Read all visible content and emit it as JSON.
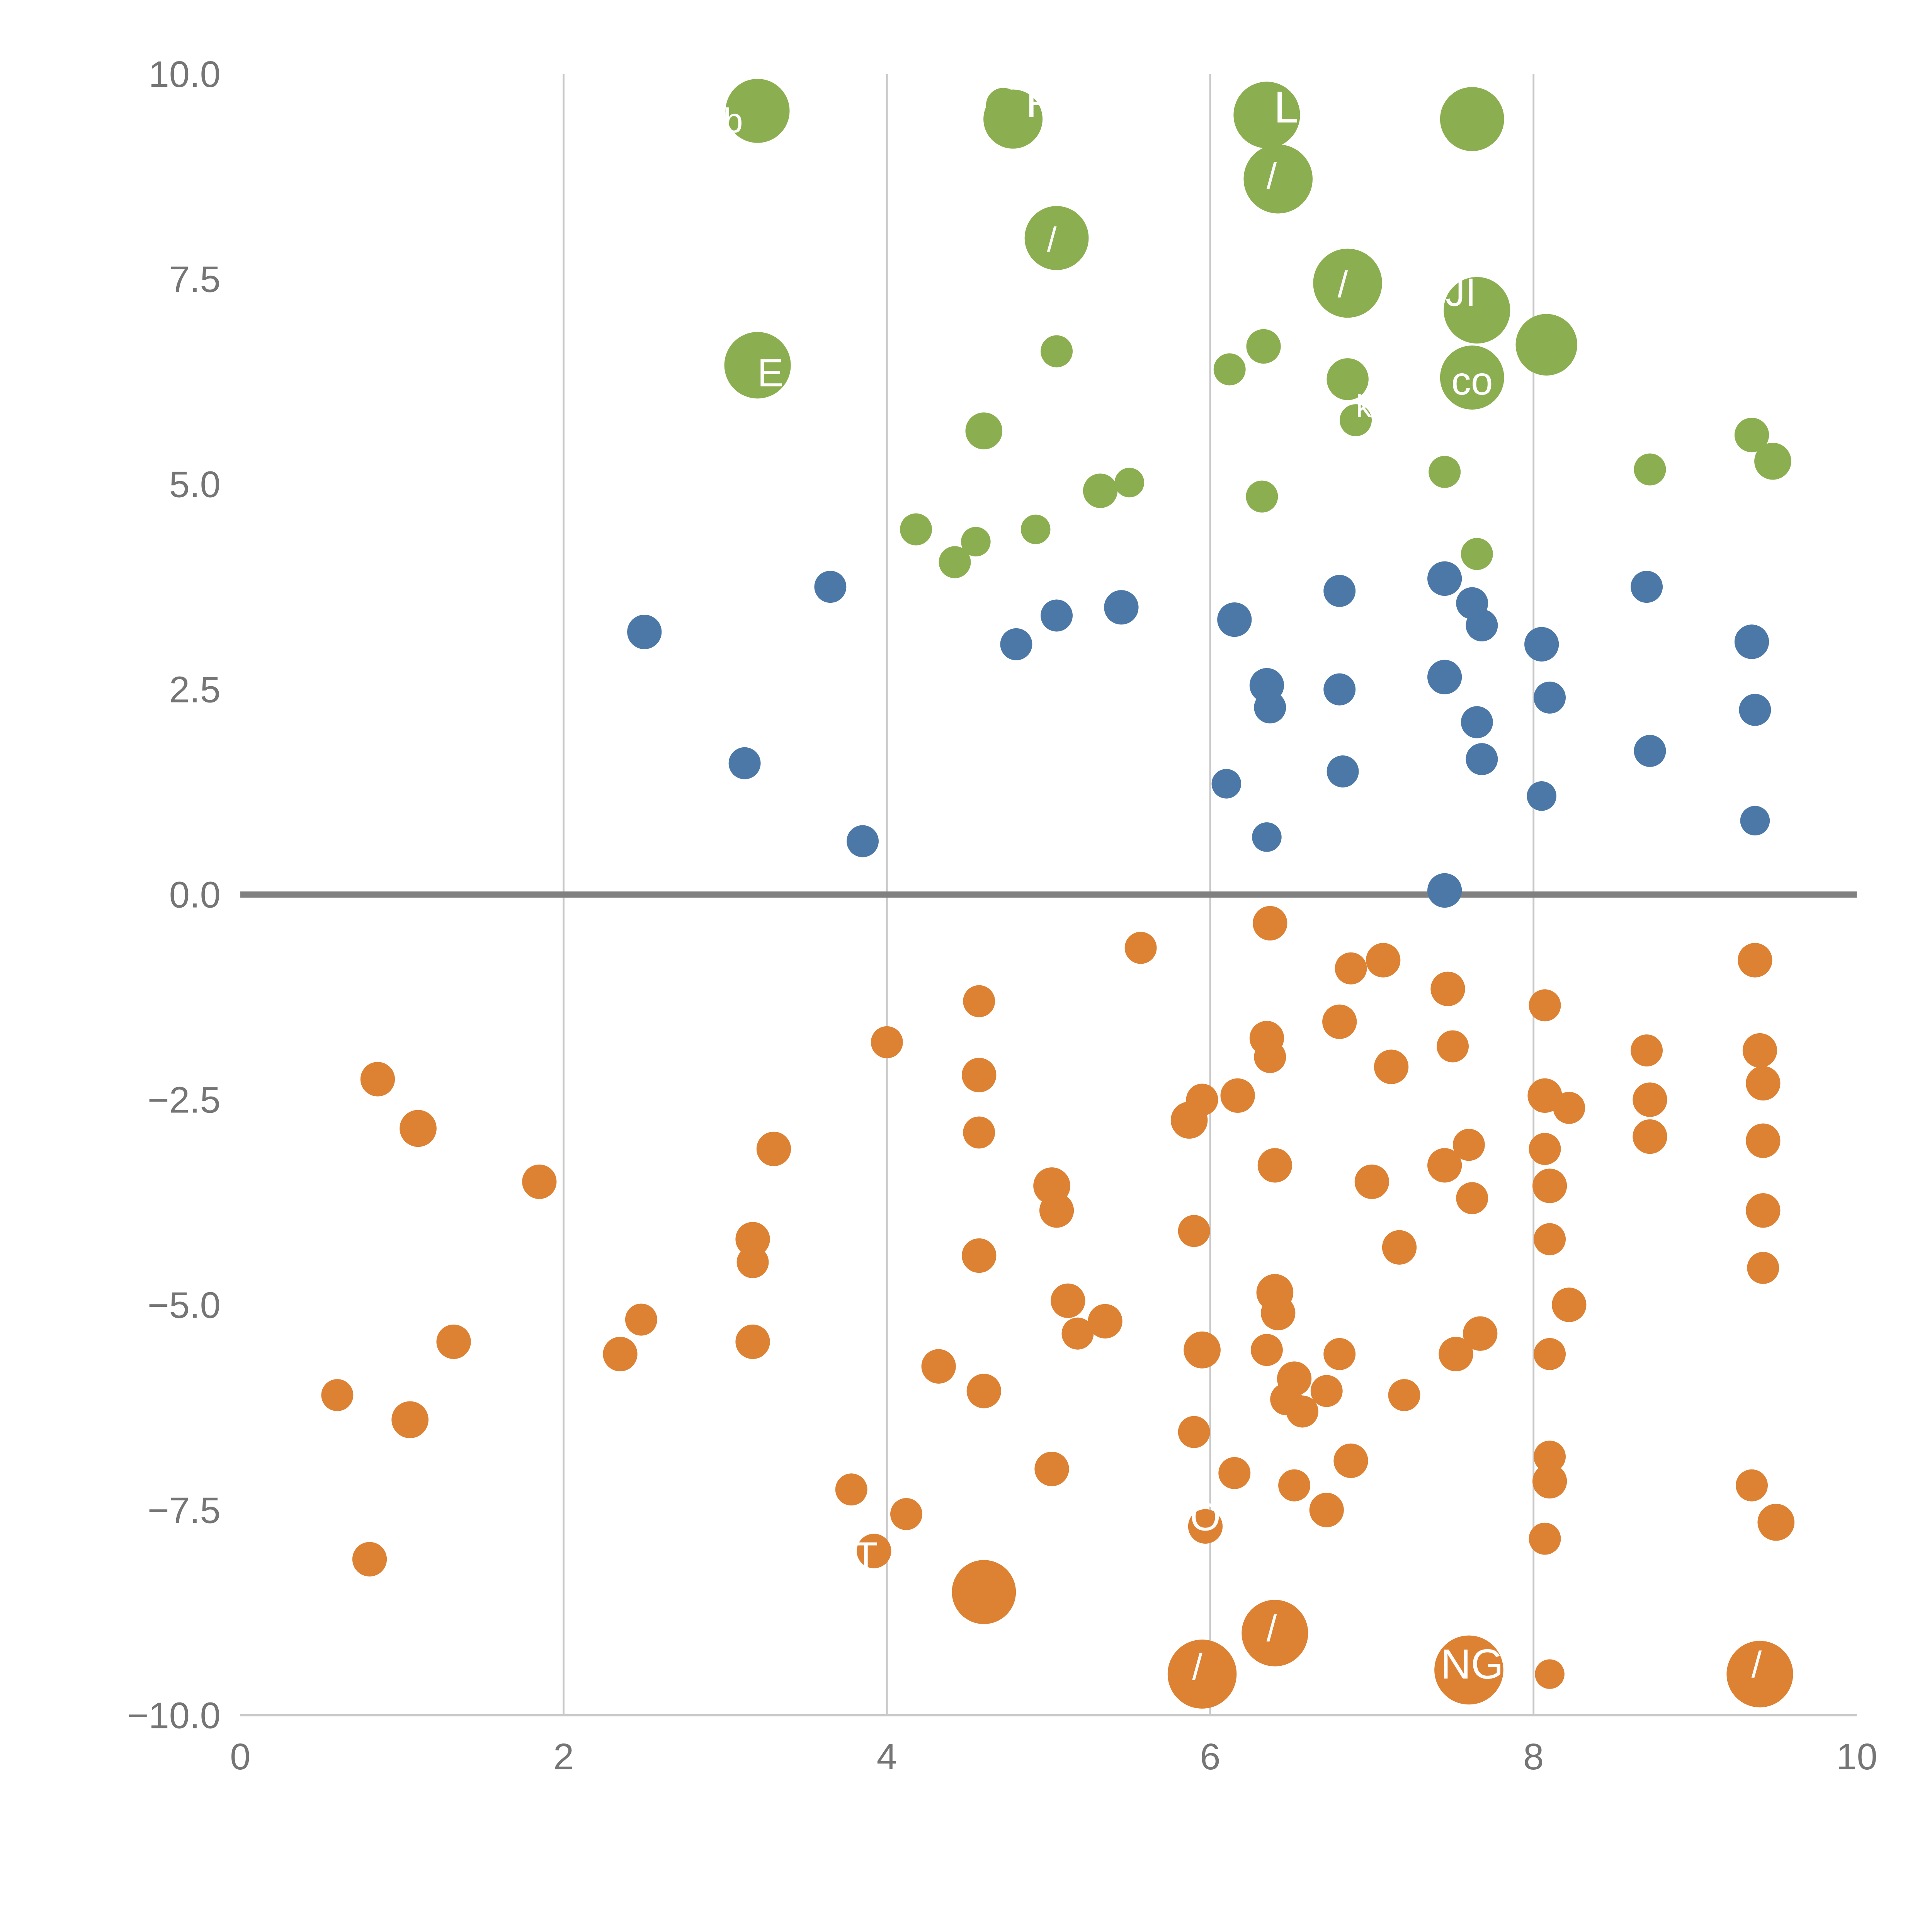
{
  "chart_data": {
    "type": "scatter",
    "title": "",
    "xlabel": "",
    "ylabel": "",
    "xlim": [
      0,
      10
    ],
    "ylim": [
      -10,
      10
    ],
    "grid": true,
    "gridlines_x": [
      2,
      4,
      6,
      8
    ],
    "zero_line_y": 0,
    "x_ticks": {
      "values": [
        0,
        2,
        4,
        6,
        8,
        10
      ],
      "labels": [
        "0",
        "2",
        "4",
        "6",
        "8",
        "10"
      ]
    },
    "y_ticks": {
      "values": [
        10,
        7.5,
        5,
        2.5,
        0,
        -2.5,
        -5,
        -7.5,
        -10
      ],
      "labels": [
        "10.0",
        "7.5",
        "5.0",
        "2.5",
        "0.0",
        "−2.5",
        "−5.0",
        "−7.5",
        "−10.0"
      ]
    },
    "colors": {
      "grid": "#c9c9c9",
      "axis": "#c9c9c9",
      "zero_line": "#808080",
      "tick_text": "#757575",
      "label_text": "#ffffff"
    },
    "series": [
      {
        "name": "green",
        "color": "#8BAF50",
        "points": [
          [
            3.2,
            9.55,
            26
          ],
          [
            4.72,
            9.62,
            14
          ],
          [
            4.78,
            9.45,
            24
          ],
          [
            6.35,
            9.5,
            27
          ],
          [
            7.62,
            9.45,
            26
          ],
          [
            6.42,
            8.72,
            28
          ],
          [
            5.05,
            8.0,
            26
          ],
          [
            6.85,
            7.45,
            28
          ],
          [
            7.65,
            7.12,
            27
          ],
          [
            8.08,
            6.7,
            25
          ],
          [
            3.2,
            6.45,
            27
          ],
          [
            5.05,
            6.62,
            13
          ],
          [
            6.12,
            6.4,
            13
          ],
          [
            6.33,
            6.68,
            14
          ],
          [
            6.85,
            6.28,
            17
          ],
          [
            7.62,
            6.3,
            26
          ],
          [
            6.9,
            5.78,
            13
          ],
          [
            4.6,
            5.65,
            15
          ],
          [
            7.45,
            5.15,
            13
          ],
          [
            8.72,
            5.18,
            13
          ],
          [
            9.35,
            5.6,
            14
          ],
          [
            9.48,
            5.28,
            15
          ],
          [
            5.32,
            4.92,
            14
          ],
          [
            5.5,
            5.02,
            12
          ],
          [
            4.18,
            4.45,
            13
          ],
          [
            4.42,
            4.05,
            13
          ],
          [
            4.55,
            4.3,
            12
          ],
          [
            4.92,
            4.45,
            12
          ],
          [
            6.32,
            4.85,
            13
          ],
          [
            7.65,
            4.15,
            13
          ]
        ]
      },
      {
        "name": "blue",
        "color": "#4C78A8",
        "points": [
          [
            2.5,
            3.2,
            14
          ],
          [
            3.65,
            3.75,
            13
          ],
          [
            3.12,
            1.6,
            13
          ],
          [
            3.85,
            0.65,
            13
          ],
          [
            4.8,
            3.05,
            13
          ],
          [
            5.05,
            3.4,
            13
          ],
          [
            5.45,
            3.5,
            14
          ],
          [
            6.15,
            3.35,
            14
          ],
          [
            6.35,
            2.55,
            14
          ],
          [
            6.37,
            2.28,
            13
          ],
          [
            6.8,
            3.7,
            13
          ],
          [
            6.8,
            2.5,
            13
          ],
          [
            6.1,
            1.35,
            12
          ],
          [
            6.35,
            0.7,
            12
          ],
          [
            6.82,
            1.5,
            13
          ],
          [
            7.45,
            3.85,
            14
          ],
          [
            7.62,
            3.55,
            13
          ],
          [
            7.68,
            3.28,
            13
          ],
          [
            7.45,
            2.65,
            14
          ],
          [
            7.65,
            2.1,
            13
          ],
          [
            7.68,
            1.65,
            13
          ],
          [
            8.05,
            3.05,
            14
          ],
          [
            8.1,
            2.4,
            13
          ],
          [
            8.05,
            1.2,
            12
          ],
          [
            8.7,
            3.75,
            13
          ],
          [
            8.72,
            1.75,
            13
          ],
          [
            7.45,
            0.05,
            14
          ],
          [
            9.35,
            3.08,
            14
          ],
          [
            9.37,
            2.25,
            13
          ],
          [
            9.37,
            0.9,
            12
          ]
        ]
      },
      {
        "name": "orange",
        "color": "#DD8133",
        "points": [
          [
            0.85,
            -2.25,
            14
          ],
          [
            1.1,
            -2.85,
            15
          ],
          [
            1.85,
            -3.5,
            14
          ],
          [
            1.32,
            -5.45,
            14
          ],
          [
            0.6,
            -6.1,
            13
          ],
          [
            1.05,
            -6.4,
            15
          ],
          [
            0.8,
            -8.1,
            14
          ],
          [
            2.35,
            -5.6,
            14
          ],
          [
            2.48,
            -5.18,
            13
          ],
          [
            3.3,
            -3.1,
            14
          ],
          [
            3.17,
            -4.2,
            14
          ],
          [
            3.17,
            -4.48,
            13
          ],
          [
            3.17,
            -5.45,
            14
          ],
          [
            3.78,
            -7.25,
            13
          ],
          [
            3.92,
            -8.0,
            14
          ],
          [
            4.12,
            -7.55,
            13
          ],
          [
            4.0,
            -1.8,
            13
          ],
          [
            4.57,
            -1.3,
            13
          ],
          [
            4.57,
            -2.2,
            14
          ],
          [
            4.57,
            -2.9,
            13
          ],
          [
            4.57,
            -4.4,
            14
          ],
          [
            4.32,
            -5.75,
            14
          ],
          [
            4.6,
            -6.05,
            14
          ],
          [
            5.02,
            -3.55,
            15
          ],
          [
            5.05,
            -3.85,
            14
          ],
          [
            5.12,
            -4.95,
            14
          ],
          [
            5.18,
            -5.35,
            13
          ],
          [
            5.35,
            -5.2,
            14
          ],
          [
            5.02,
            -7.0,
            14
          ],
          [
            4.6,
            -8.5,
            26
          ],
          [
            5.57,
            -0.65,
            13
          ],
          [
            5.87,
            -2.75,
            15
          ],
          [
            5.95,
            -2.5,
            13
          ],
          [
            6.17,
            -2.45,
            14
          ],
          [
            5.9,
            -4.1,
            13
          ],
          [
            5.95,
            -5.55,
            15
          ],
          [
            5.9,
            -6.55,
            13
          ],
          [
            6.15,
            -7.05,
            13
          ],
          [
            5.97,
            -7.7,
            14
          ],
          [
            5.95,
            -9.5,
            28
          ],
          [
            6.37,
            -0.35,
            14
          ],
          [
            6.35,
            -1.75,
            14
          ],
          [
            6.37,
            -1.98,
            13
          ],
          [
            6.4,
            -3.3,
            14
          ],
          [
            6.4,
            -4.85,
            15
          ],
          [
            6.42,
            -5.1,
            14
          ],
          [
            6.35,
            -5.55,
            13
          ],
          [
            6.52,
            -5.9,
            14
          ],
          [
            6.47,
            -6.15,
            13
          ],
          [
            6.57,
            -6.3,
            13
          ],
          [
            6.72,
            -6.05,
            13
          ],
          [
            6.8,
            -5.6,
            13
          ],
          [
            6.87,
            -6.9,
            14
          ],
          [
            6.52,
            -7.2,
            13
          ],
          [
            6.72,
            -7.5,
            14
          ],
          [
            6.4,
            -9.0,
            27
          ],
          [
            6.8,
            -1.55,
            14
          ],
          [
            6.87,
            -0.9,
            13
          ],
          [
            7.07,
            -0.8,
            14
          ],
          [
            7.12,
            -2.1,
            14
          ],
          [
            7.0,
            -3.5,
            14
          ],
          [
            7.17,
            -4.3,
            14
          ],
          [
            7.2,
            -6.1,
            13
          ],
          [
            7.47,
            -1.15,
            14
          ],
          [
            7.5,
            -1.85,
            13
          ],
          [
            7.45,
            -3.3,
            14
          ],
          [
            7.6,
            -3.05,
            13
          ],
          [
            7.62,
            -3.7,
            13
          ],
          [
            7.52,
            -5.6,
            14
          ],
          [
            7.67,
            -5.35,
            14
          ],
          [
            7.6,
            -9.45,
            28
          ],
          [
            8.07,
            -1.35,
            13
          ],
          [
            8.07,
            -2.45,
            14
          ],
          [
            8.22,
            -2.6,
            13
          ],
          [
            8.07,
            -3.1,
            13
          ],
          [
            8.1,
            -3.55,
            14
          ],
          [
            8.1,
            -4.2,
            13
          ],
          [
            8.22,
            -5.0,
            14
          ],
          [
            8.1,
            -5.6,
            13
          ],
          [
            8.1,
            -6.85,
            13
          ],
          [
            8.1,
            -7.15,
            14
          ],
          [
            8.07,
            -7.85,
            13
          ],
          [
            8.1,
            -9.5,
            12
          ],
          [
            8.7,
            -1.9,
            13
          ],
          [
            8.72,
            -2.5,
            14
          ],
          [
            8.72,
            -2.95,
            14
          ],
          [
            9.37,
            -0.8,
            14
          ],
          [
            9.4,
            -1.9,
            14
          ],
          [
            9.42,
            -2.3,
            14
          ],
          [
            9.42,
            -3.0,
            14
          ],
          [
            9.42,
            -3.85,
            14
          ],
          [
            9.42,
            -4.55,
            13
          ],
          [
            9.35,
            -7.2,
            13
          ],
          [
            9.5,
            -7.65,
            15
          ],
          [
            9.4,
            -9.5,
            27
          ]
        ]
      }
    ],
    "point_labels": [
      {
        "text": "P",
        "x": 4.95,
        "y": 9.62,
        "size": 36
      },
      {
        "text": "LPI",
        "x": 6.6,
        "y": 9.55,
        "size": 36
      },
      {
        "text": "b",
        "x": 3.05,
        "y": 9.4,
        "size": 28
      },
      {
        "text": "E",
        "x": 3.28,
        "y": 6.32,
        "size": 32
      },
      {
        "text": "JI",
        "x": 7.55,
        "y": 7.3,
        "size": 32
      },
      {
        "text": "co",
        "x": 7.62,
        "y": 6.22,
        "size": 32
      },
      {
        "text": "k",
        "x": 6.95,
        "y": 5.92,
        "size": 26
      },
      {
        "text": "/",
        "x": 6.38,
        "y": 8.72,
        "size": 30
      },
      {
        "text": "/",
        "x": 6.82,
        "y": 7.4,
        "size": 30
      },
      {
        "text": "/",
        "x": 5.02,
        "y": 7.95,
        "size": 28
      },
      {
        "text": "O",
        "x": 5.97,
        "y": -7.62,
        "size": 32
      },
      {
        "text": "T",
        "x": 3.87,
        "y": -8.1,
        "size": 32
      },
      {
        "text": "NG",
        "x": 7.62,
        "y": -9.42,
        "size": 34
      },
      {
        "text": "/",
        "x": 5.92,
        "y": -9.45,
        "size": 30
      },
      {
        "text": "/",
        "x": 6.38,
        "y": -8.98,
        "size": 30
      },
      {
        "text": "/",
        "x": 9.38,
        "y": -9.42,
        "size": 30
      }
    ],
    "layout": {
      "plot_left": 195,
      "plot_right": 1507,
      "plot_top": 60,
      "plot_bottom": 1392,
      "canvas": 1568,
      "tick_font_size": 30
    }
  }
}
